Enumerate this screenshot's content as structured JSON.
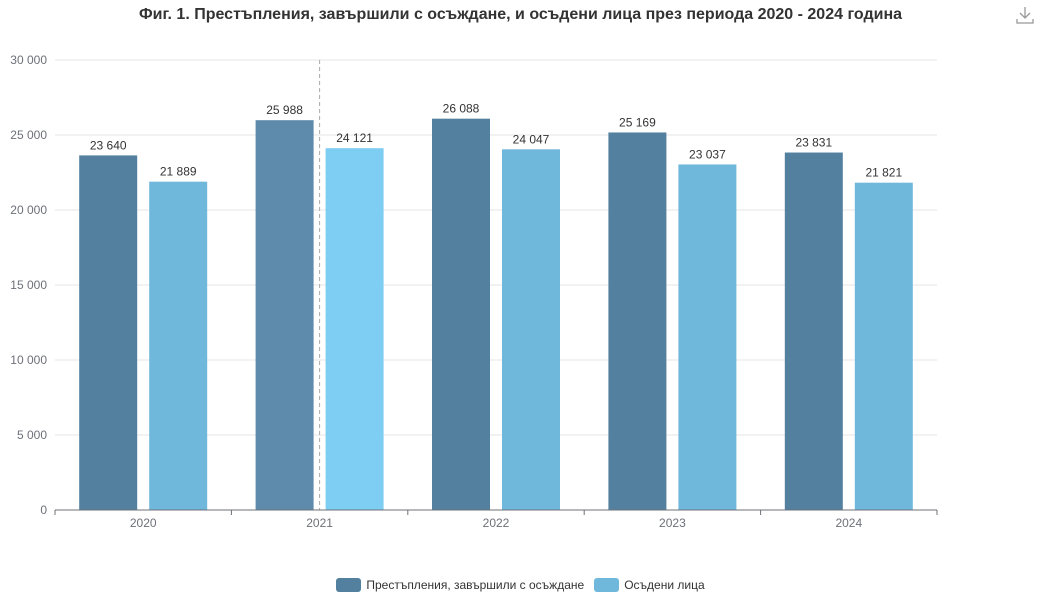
{
  "chart_data": {
    "type": "bar",
    "title": "Фиг. 1. Престъпления, завършили с осъждане, и осъдени лица през периода 2020 - 2024 година",
    "categories": [
      "2020",
      "2021",
      "2022",
      "2023",
      "2024"
    ],
    "series": [
      {
        "name": "Престъпления, завършили с осъждане",
        "values": [
          23640,
          25988,
          26088,
          25169,
          23831
        ],
        "value_labels": [
          "23 640",
          "25 988",
          "26 088",
          "25 169",
          "23 831"
        ],
        "color": "#53809f"
      },
      {
        "name": "Осъдени лица",
        "values": [
          21889,
          24121,
          24047,
          23037,
          21821
        ],
        "value_labels": [
          "21 889",
          "24 121",
          "24 047",
          "23 037",
          "21 821"
        ],
        "color": "#6fb8dc"
      }
    ],
    "highlight": {
      "category": "2021",
      "colors": [
        "#5e8bab",
        "#7ecdf2"
      ]
    },
    "ylim": [
      0,
      30000
    ],
    "yticks": [
      0,
      5000,
      10000,
      15000,
      20000,
      25000,
      30000
    ],
    "ytick_labels": [
      "0",
      "5 000",
      "10 000",
      "15 000",
      "20 000",
      "25 000",
      "30 000"
    ],
    "xlabel": "",
    "ylabel": "",
    "grid": true,
    "legend_position": "bottom-center",
    "colors": {
      "grid": "#e6e6e6",
      "axis": "#6e7079",
      "tick_text": "#6e7079",
      "label_text": "#333333",
      "pointer_line": "#aaaaaa"
    }
  },
  "toolbar": {
    "download_icon": "download-icon"
  }
}
